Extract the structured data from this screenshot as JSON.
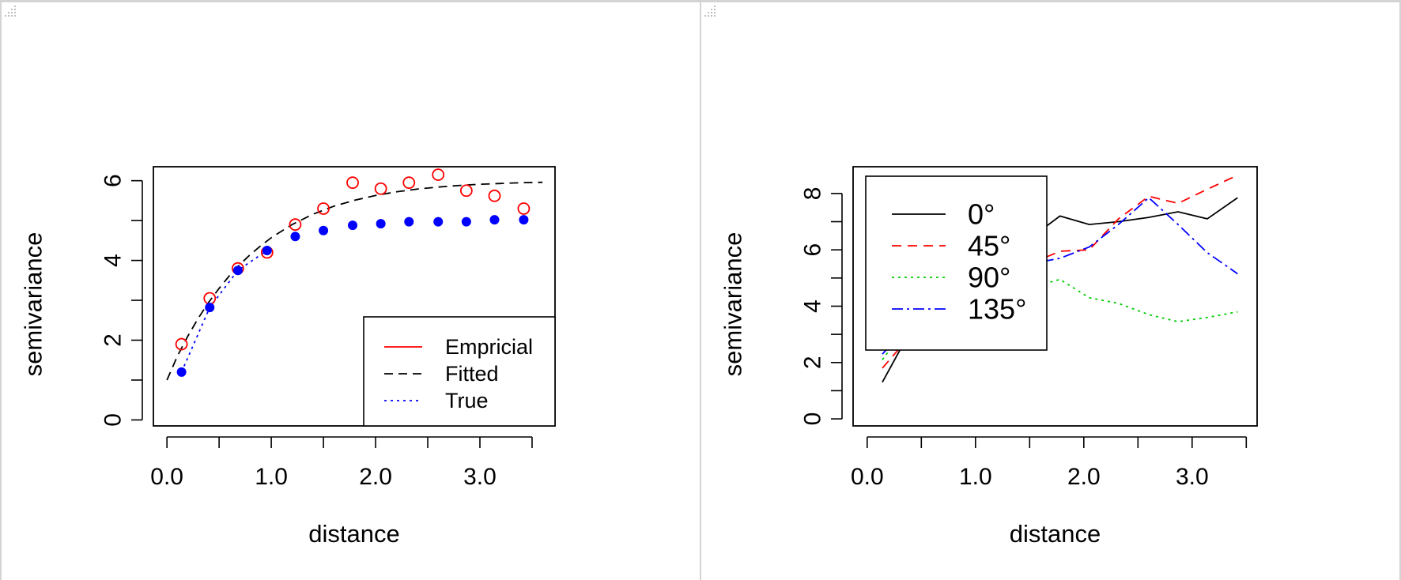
{
  "chart_data": [
    {
      "type": "scatter",
      "xlabel": "distance",
      "ylabel": "semivariance",
      "xlim": [
        -0.13,
        3.72
      ],
      "ylim": [
        -0.15,
        6.35
      ],
      "x_ticks": [
        0.0,
        0.5,
        1.0,
        1.5,
        2.0,
        2.5,
        3.0,
        3.5
      ],
      "x_tick_labels": [
        "0.0",
        "1.0",
        "2.0",
        "3.0"
      ],
      "x_tick_label_values": [
        0.0,
        1.0,
        2.0,
        3.0
      ],
      "y_ticks": [
        0,
        1,
        2,
        3,
        4,
        5,
        6
      ],
      "y_tick_labels": [
        "0",
        "2",
        "4",
        "6"
      ],
      "y_tick_label_values": [
        0,
        2,
        4,
        6
      ],
      "legend_position": "bottom-right",
      "series": [
        {
          "name": "Empricial",
          "style": "points-open-circle",
          "color": "#ff0000",
          "x": [
            0.14,
            0.41,
            0.68,
            0.96,
            1.23,
            1.5,
            1.78,
            2.05,
            2.32,
            2.6,
            2.87,
            3.14,
            3.42
          ],
          "y": [
            1.9,
            3.05,
            3.8,
            4.2,
            4.9,
            5.3,
            5.95,
            5.8,
            5.95,
            6.15,
            5.75,
            5.62,
            5.3
          ]
        },
        {
          "name": "Fitted",
          "style": "dashed-line",
          "color": "#000000",
          "x": [
            0.0,
            0.1,
            0.2,
            0.3,
            0.4,
            0.5,
            0.6,
            0.7,
            0.8,
            0.9,
            1.0,
            1.2,
            1.4,
            1.6,
            1.8,
            2.0,
            2.2,
            2.4,
            2.6,
            2.8,
            3.0,
            3.2,
            3.4,
            3.6
          ],
          "y": [
            1.0,
            1.6,
            2.1,
            2.55,
            2.95,
            3.3,
            3.62,
            3.9,
            4.15,
            4.37,
            4.57,
            4.9,
            5.16,
            5.36,
            5.51,
            5.63,
            5.72,
            5.79,
            5.84,
            5.88,
            5.91,
            5.93,
            5.95,
            5.96
          ]
        },
        {
          "name": "True",
          "style": "points-filled-and-dotted-line",
          "color": "#0000ff",
          "x": [
            0.14,
            0.41,
            0.68,
            0.96,
            1.23,
            1.5,
            1.78,
            2.05,
            2.32,
            2.6,
            2.87,
            3.14,
            3.42
          ],
          "y": [
            1.2,
            2.82,
            3.75,
            4.25,
            4.6,
            4.75,
            4.88,
            4.92,
            4.97,
            4.97,
            4.97,
            5.02,
            5.02
          ]
        }
      ]
    },
    {
      "type": "line",
      "xlabel": "distance",
      "ylabel": "semivariance",
      "xlim": [
        -0.13,
        3.6
      ],
      "ylim": [
        -0.25,
        8.95
      ],
      "x_ticks": [
        0.0,
        0.5,
        1.0,
        1.5,
        2.0,
        2.5,
        3.0,
        3.5
      ],
      "x_tick_labels": [
        "0.0",
        "1.0",
        "2.0",
        "3.0"
      ],
      "x_tick_label_values": [
        0.0,
        1.0,
        2.0,
        3.0
      ],
      "y_ticks": [
        0,
        1,
        2,
        3,
        4,
        5,
        6,
        7,
        8
      ],
      "y_tick_labels": [
        "0",
        "2",
        "4",
        "6",
        "8"
      ],
      "y_tick_label_values": [
        0,
        2,
        4,
        6,
        8
      ],
      "legend_position": "top-left",
      "series": [
        {
          "name": "0°",
          "style": "solid",
          "color": "#000000",
          "x": [
            0.14,
            0.41,
            0.68,
            0.96,
            1.23,
            1.5,
            1.78,
            2.05,
            2.32,
            2.6,
            2.87,
            3.14,
            3.42
          ],
          "y": [
            1.3,
            3.2,
            4.6,
            5.4,
            6.0,
            6.4,
            7.2,
            6.9,
            7.0,
            7.15,
            7.35,
            7.1,
            7.85
          ]
        },
        {
          "name": "45°",
          "style": "dashed",
          "color": "#ff0000",
          "x": [
            0.14,
            0.41,
            0.68,
            0.96,
            1.23,
            1.5,
            1.78,
            2.05,
            2.32,
            2.6,
            2.87,
            3.14,
            3.42
          ],
          "y": [
            1.8,
            3.0,
            4.3,
            4.9,
            5.3,
            5.5,
            5.95,
            6.0,
            7.1,
            7.9,
            7.65,
            8.15,
            8.65
          ]
        },
        {
          "name": "90°",
          "style": "dotted",
          "color": "#00cc00",
          "x": [
            0.14,
            0.41,
            0.68,
            0.96,
            1.23,
            1.5,
            1.78,
            2.05,
            2.32,
            2.6,
            2.87,
            3.14,
            3.42
          ],
          "y": [
            2.1,
            3.5,
            4.2,
            4.5,
            4.6,
            4.65,
            4.95,
            4.3,
            4.1,
            3.7,
            3.45,
            3.6,
            3.8
          ]
        },
        {
          "name": "135°",
          "style": "dashdot",
          "color": "#0000ff",
          "x": [
            0.14,
            0.41,
            0.68,
            0.96,
            1.23,
            1.5,
            1.78,
            2.05,
            2.32,
            2.6,
            2.87,
            3.14,
            3.42
          ],
          "y": [
            2.3,
            3.4,
            4.5,
            5.0,
            5.3,
            5.5,
            5.7,
            6.1,
            6.9,
            7.85,
            6.9,
            5.9,
            5.15
          ]
        }
      ]
    }
  ]
}
